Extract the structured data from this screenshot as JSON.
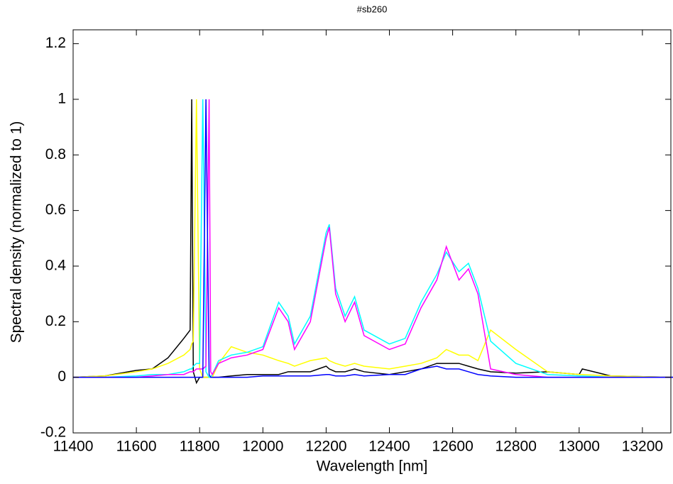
{
  "chart_data": {
    "type": "line",
    "title": "#sb260",
    "x_label": "Wavelength [nm]",
    "y_label": "Spectral density (normalized to 1)",
    "x": [
      11400,
      11500,
      11600,
      11650,
      11700,
      11750,
      11770,
      11775,
      11780,
      11790,
      11800,
      11810,
      11820,
      11830,
      11835,
      11840,
      11860,
      11900,
      11950,
      12000,
      12050,
      12080,
      12100,
      12150,
      12200,
      12210,
      12230,
      12260,
      12290,
      12320,
      12400,
      12450,
      12500,
      12550,
      12580,
      12620,
      12650,
      12680,
      12720,
      12800,
      12900,
      13000,
      13010,
      13100,
      13300
    ],
    "series": [
      {
        "color": "#000000",
        "values": [
          0,
          0.005,
          0.025,
          0.03,
          0.07,
          0.14,
          0.17,
          1,
          0.02,
          -0.02,
          0,
          0,
          0,
          0,
          0,
          0,
          0,
          0.005,
          0.01,
          0.01,
          0.01,
          0.02,
          0.02,
          0.02,
          0.04,
          0.03,
          0.02,
          0.02,
          0.03,
          0.02,
          0.01,
          0.02,
          0.03,
          0.05,
          0.05,
          0.05,
          0.04,
          0.03,
          0.02,
          0.015,
          0.02,
          0.01,
          0.03,
          0.005,
          0
        ]
      },
      {
        "color": "#ffff00",
        "values": [
          0,
          0.005,
          0.02,
          0.03,
          0.05,
          0.08,
          0.1,
          0.12,
          0.13,
          1,
          0.03,
          0,
          0,
          0,
          0,
          0,
          0.05,
          0.11,
          0.09,
          0.08,
          0.06,
          0.05,
          0.04,
          0.06,
          0.07,
          0.06,
          0.05,
          0.04,
          0.05,
          0.04,
          0.03,
          0.04,
          0.05,
          0.07,
          0.1,
          0.08,
          0.08,
          0.06,
          0.17,
          0.1,
          0.02,
          0.01,
          0.01,
          0.005,
          0
        ]
      },
      {
        "color": "#00ffff",
        "values": [
          0,
          0,
          0.005,
          0.01,
          0.01,
          0.02,
          0.03,
          0.03,
          0.04,
          0.05,
          0.05,
          1,
          0.02,
          0,
          0,
          0.01,
          0.06,
          0.08,
          0.09,
          0.11,
          0.27,
          0.22,
          0.12,
          0.22,
          0.52,
          0.55,
          0.32,
          0.22,
          0.29,
          0.17,
          0.12,
          0.14,
          0.27,
          0.37,
          0.45,
          0.38,
          0.41,
          0.32,
          0.13,
          0.05,
          0.01,
          0.005,
          0.005,
          0,
          0
        ]
      },
      {
        "color": "#ff00ff",
        "values": [
          0,
          0,
          0,
          0.005,
          0.01,
          0.01,
          0.02,
          0.02,
          0.02,
          0.03,
          0.03,
          0.03,
          0.04,
          1,
          0.02,
          0.01,
          0.05,
          0.07,
          0.08,
          0.1,
          0.25,
          0.2,
          0.1,
          0.2,
          0.5,
          0.54,
          0.3,
          0.2,
          0.27,
          0.15,
          0.1,
          0.12,
          0.25,
          0.35,
          0.47,
          0.35,
          0.39,
          0.3,
          0.03,
          0.01,
          0,
          0,
          0,
          0,
          0
        ]
      },
      {
        "color": "#0000ff",
        "values": [
          0,
          0,
          0,
          0,
          0,
          0,
          0,
          0,
          0,
          0,
          0,
          0,
          1,
          0.01,
          0,
          0,
          0,
          0,
          0,
          0.005,
          0.005,
          0.005,
          0.005,
          0.005,
          0.01,
          0.01,
          0.005,
          0.005,
          0.01,
          0.005,
          0.01,
          0.01,
          0.03,
          0.04,
          0.03,
          0.03,
          0.02,
          0.01,
          0.005,
          0,
          0,
          0,
          0,
          0,
          0
        ]
      }
    ],
    "xlim": [
      11400,
      13290
    ],
    "ylim": [
      -0.2,
      1.25
    ],
    "xticks": [
      11400,
      11600,
      11800,
      12000,
      12200,
      12400,
      12600,
      12800,
      13000,
      13200
    ],
    "yticks": [
      -0.2,
      0,
      0.2,
      0.4,
      0.6,
      0.8,
      1,
      1.2
    ]
  }
}
